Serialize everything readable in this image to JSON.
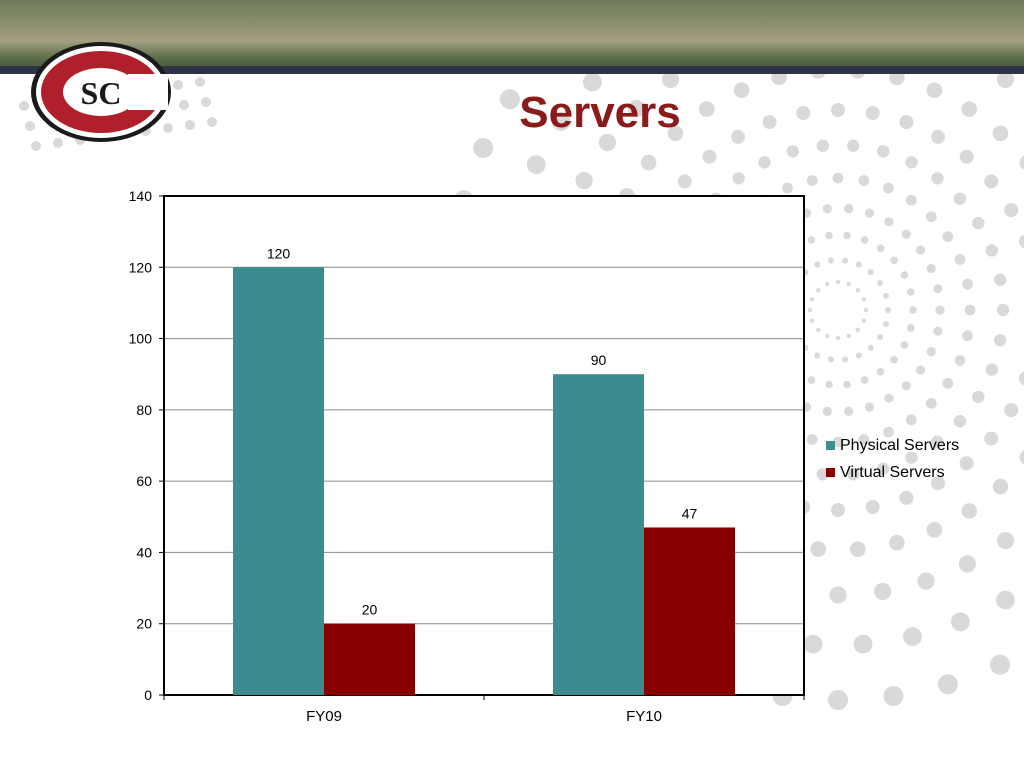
{
  "slide": {
    "title": "Servers",
    "logo_text": "SC"
  },
  "colors": {
    "title": "#8b1a1a",
    "physical": "#3b8c8f",
    "virtual": "#870000",
    "dots": "#d9d9d9",
    "stripe": "#2e3347"
  },
  "chart_data": {
    "type": "bar",
    "categories": [
      "FY09",
      "FY10"
    ],
    "series": [
      {
        "name": "Physical Servers",
        "values": [
          120,
          90
        ],
        "color": "#3b8c8f"
      },
      {
        "name": "Virtual Servers",
        "values": [
          20,
          47
        ],
        "color": "#870000"
      }
    ],
    "ylim": [
      0,
      140
    ],
    "yticks": [
      0,
      20,
      40,
      60,
      80,
      100,
      120,
      140
    ],
    "grid": true,
    "legend": "right",
    "data_labels": true
  }
}
